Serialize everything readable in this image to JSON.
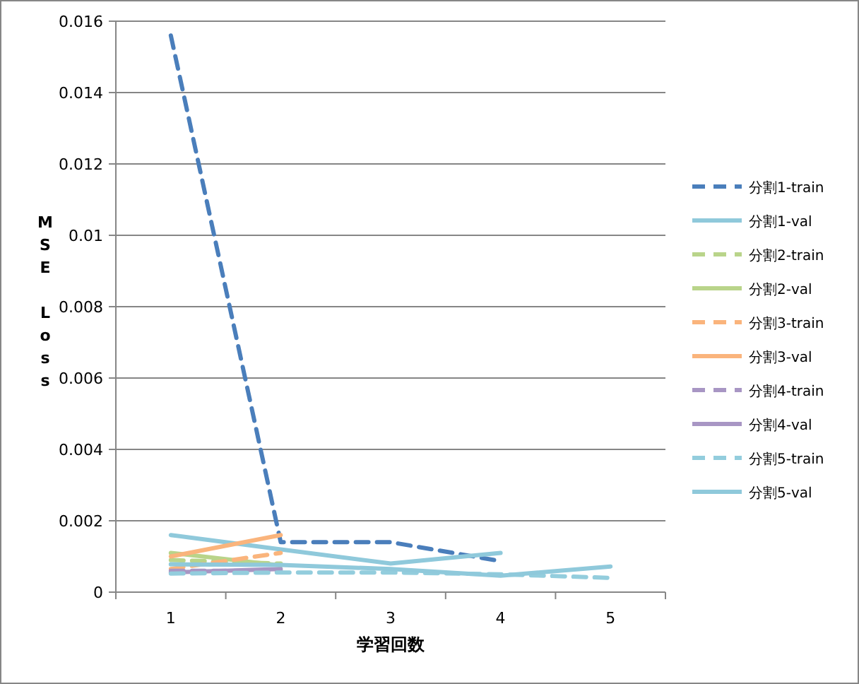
{
  "chart_data": {
    "type": "line",
    "xlabel": "学習回数",
    "ylabel": "MSE Loss",
    "categories": [
      "1",
      "2",
      "3",
      "4",
      "5"
    ],
    "ylim": [
      0,
      0.016
    ],
    "yticks": [
      0,
      0.002,
      0.004,
      0.006,
      0.008,
      0.01,
      0.012,
      0.014,
      0.016
    ],
    "grid": "y",
    "legend": "right",
    "series": [
      {
        "name": "分割1-train",
        "color": "#4a7ebb",
        "line_style": "dashed",
        "values": [
          0.0156,
          0.0014,
          0.0014,
          0.00087,
          null
        ]
      },
      {
        "name": "分割1-val",
        "color": "#8fc9db",
        "line_style": "solid",
        "values": [
          0.0016,
          0.0012,
          0.0008,
          0.0011,
          null
        ]
      },
      {
        "name": "分割2-train",
        "color": "#b9d48a",
        "line_style": "dashed",
        "values": [
          0.0009,
          0.0008,
          null,
          null,
          null
        ]
      },
      {
        "name": "分割2-val",
        "color": "#b9d48a",
        "line_style": "solid",
        "values": [
          0.0011,
          0.00075,
          null,
          null,
          null
        ]
      },
      {
        "name": "分割3-train",
        "color": "#fab47c",
        "line_style": "dashed",
        "values": [
          0.00065,
          0.0011,
          null,
          null,
          null
        ]
      },
      {
        "name": "分割3-val",
        "color": "#fab47c",
        "line_style": "solid",
        "values": [
          0.001,
          0.0016,
          null,
          null,
          null
        ]
      },
      {
        "name": "分割4-train",
        "color": "#a896c4",
        "line_style": "dashed",
        "values": [
          0.0006,
          0.0006,
          null,
          null,
          null
        ]
      },
      {
        "name": "分割4-val",
        "color": "#a896c4",
        "line_style": "solid",
        "values": [
          0.00055,
          0.00065,
          null,
          null,
          null
        ]
      },
      {
        "name": "分割5-train",
        "color": "#93cddd",
        "line_style": "dashed",
        "values": [
          0.00052,
          0.00055,
          0.00055,
          0.0005,
          0.0004
        ]
      },
      {
        "name": "分割5-val",
        "color": "#8fc9db",
        "line_style": "solid",
        "values": [
          0.00078,
          0.00076,
          0.00065,
          0.00046,
          0.00072
        ]
      }
    ]
  }
}
